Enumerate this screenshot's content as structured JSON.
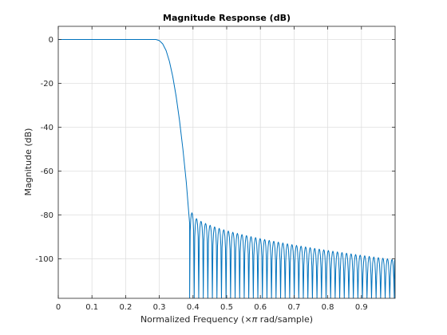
{
  "chart_data": {
    "type": "line",
    "title": "Magnitude Response (dB)",
    "xlabel_main": "Normalized Frequency  (",
    "xlabel_symbol": "×π",
    "xlabel_tail": " rad/sample)",
    "ylabel": "Magnitude (dB)",
    "xlim": [
      0,
      1
    ],
    "ylim": [
      -118,
      6
    ],
    "x_ticks": [
      0,
      0.1,
      0.2,
      0.3,
      0.4,
      0.5,
      0.6,
      0.7,
      0.8,
      0.9
    ],
    "x_tick_labels": [
      "0",
      "0.1",
      "0.2",
      "0.3",
      "0.4",
      "0.5",
      "0.6",
      "0.7",
      "0.8",
      "0.9"
    ],
    "y_ticks": [
      0,
      -20,
      -40,
      -60,
      -80,
      -100
    ],
    "y_tick_labels": [
      "0",
      "-20",
      "-40",
      "-60",
      "-80",
      "-100"
    ],
    "grid": true,
    "series_color": "#0072bd",
    "passband": {
      "x": [
        0,
        0.29
      ],
      "y": 0
    },
    "transition": {
      "x": [
        0.29,
        0.3,
        0.31,
        0.32,
        0.33,
        0.34,
        0.35,
        0.36,
        0.37,
        0.38,
        0.39
      ],
      "y": [
        0,
        -0.5,
        -2,
        -5,
        -10,
        -17,
        -26,
        -37,
        -50,
        -65,
        -84
      ]
    },
    "stopband": {
      "start": 0.39,
      "end": 1.0,
      "lobe_width": 0.0135,
      "peak_start": -79,
      "peak_end": -100.5,
      "null_floor": -118
    }
  }
}
